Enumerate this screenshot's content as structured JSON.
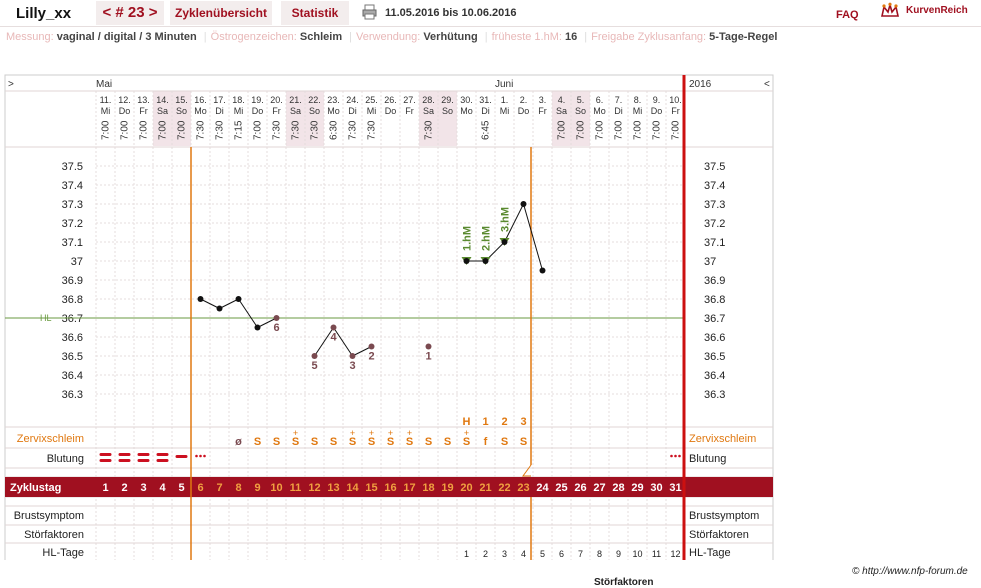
{
  "header": {
    "user": "Lilly_xx",
    "cycle_nav": "< # 23 >",
    "tab_overview": "Zyklenübersicht",
    "tab_stats": "Statistik",
    "date_range": "11.05.2016 bis 10.06.2016",
    "faq": "FAQ",
    "brand": "KurvenReich"
  },
  "meta": [
    {
      "key": "Messung:",
      "value": "vaginal / digital / 3 Minuten"
    },
    {
      "key": "Östrogenzeichen:",
      "value": "Schleim"
    },
    {
      "key": "Verwendung:",
      "value": "Verhütung"
    },
    {
      "key": "früheste 1.hM:",
      "value": "16"
    },
    {
      "key": "Freigabe Zyklusanfang:",
      "value": "5-Tage-Regel"
    }
  ],
  "chart": {
    "nav_prev": ">",
    "nav_next": "<",
    "month_may": "Mai",
    "month_june": "Juni",
    "year": "2016",
    "hl_label": "HL",
    "hl_value": 36.7,
    "days": [
      {
        "date": "11.",
        "wd": "Mi",
        "time": "7:00"
      },
      {
        "date": "12.",
        "wd": "Do",
        "time": "7:00"
      },
      {
        "date": "13.",
        "wd": "Fr",
        "time": "7:00"
      },
      {
        "date": "14.",
        "wd": "Sa",
        "time": "7:00",
        "weekend": true
      },
      {
        "date": "15.",
        "wd": "So",
        "time": "7:00",
        "weekend": true
      },
      {
        "date": "16.",
        "wd": "Mo",
        "time": "7:30"
      },
      {
        "date": "17.",
        "wd": "Di",
        "time": "7:30"
      },
      {
        "date": "18.",
        "wd": "Mi",
        "time": "7:15"
      },
      {
        "date": "19.",
        "wd": "Do",
        "time": "7:00"
      },
      {
        "date": "20.",
        "wd": "Fr",
        "time": "7:30"
      },
      {
        "date": "21.",
        "wd": "Sa",
        "time": "7:30",
        "weekend": true
      },
      {
        "date": "22.",
        "wd": "So",
        "time": "7:30",
        "weekend": true
      },
      {
        "date": "23.",
        "wd": "Mo",
        "time": "6:30"
      },
      {
        "date": "24.",
        "wd": "Di",
        "time": "7:30"
      },
      {
        "date": "25.",
        "wd": "Mi",
        "time": "7:30"
      },
      {
        "date": "26.",
        "wd": "Do",
        "time": ""
      },
      {
        "date": "27.",
        "wd": "Fr",
        "time": ""
      },
      {
        "date": "28.",
        "wd": "Sa",
        "time": "7:30",
        "weekend": true
      },
      {
        "date": "29.",
        "wd": "So",
        "time": "",
        "weekend": true
      },
      {
        "date": "30.",
        "wd": "Mo",
        "time": ""
      },
      {
        "date": "31.",
        "wd": "Di",
        "time": "6:45"
      },
      {
        "date": "1.",
        "wd": "Mi",
        "time": ""
      },
      {
        "date": "2.",
        "wd": "Do",
        "time": ""
      },
      {
        "date": "3.",
        "wd": "Fr",
        "time": ""
      },
      {
        "date": "4.",
        "wd": "Sa",
        "time": "7:00",
        "weekend": true
      },
      {
        "date": "5.",
        "wd": "So",
        "time": "7:00",
        "weekend": true
      },
      {
        "date": "6.",
        "wd": "Mo",
        "time": "7:00"
      },
      {
        "date": "7.",
        "wd": "Di",
        "time": "7:00"
      },
      {
        "date": "8.",
        "wd": "Mi",
        "time": "7:00"
      },
      {
        "date": "9.",
        "wd": "Do",
        "time": "7:00"
      },
      {
        "date": "10.",
        "wd": "Fr",
        "time": "7:00"
      }
    ],
    "y_ticks": [
      "37.5",
      "37.4",
      "37.3",
      "37.2",
      "37.1",
      "37",
      "36.9",
      "36.8",
      "36.7",
      "36.6",
      "36.5",
      "36.4",
      "36.3"
    ],
    "temps": [
      null,
      null,
      null,
      null,
      null,
      36.8,
      36.75,
      36.8,
      36.65,
      36.7,
      null,
      36.5,
      36.65,
      36.5,
      36.55,
      null,
      null,
      36.55,
      null,
      37.0,
      37.0,
      37.1,
      37.3,
      36.95,
      null,
      null,
      null,
      null,
      null,
      null,
      null
    ],
    "excluded": [
      9,
      11,
      12,
      13,
      14,
      17
    ],
    "excluded_labels": {
      "9": "6",
      "11": "5",
      "12": "4",
      "13": "3",
      "14": "2",
      "17": "1"
    },
    "markers": [
      {
        "day": 19,
        "label": "1.hM"
      },
      {
        "day": 20,
        "label": "2.hM"
      },
      {
        "day": 21,
        "label": "3.hM"
      }
    ],
    "counts_above": {
      "19": "H",
      "20": "1",
      "21": "2",
      "22": "3"
    },
    "cervix_label": "Zervixschleim",
    "cervix": [
      "",
      "",
      "",
      "",
      "",
      "",
      "",
      "ø",
      "S",
      "S",
      "S+",
      "S",
      "S",
      "S+",
      "S+",
      "S+",
      "S+",
      "S",
      "S",
      "S+",
      "f",
      "S",
      "S",
      "",
      "",
      "",
      "",
      "",
      "",
      "",
      ""
    ],
    "bleeding_label": "Blutung",
    "bleeding": [
      "heavy",
      "heavy",
      "heavy",
      "heavy",
      "medium",
      "spot",
      "",
      "",
      "",
      "",
      "",
      "",
      "",
      "",
      "",
      "",
      "",
      "",
      "",
      "",
      "",
      "",
      "",
      "",
      "",
      "",
      "",
      "",
      "",
      "",
      "spot"
    ],
    "cycleday_label": "Zyklustag",
    "cycle_days": [
      "1",
      "2",
      "3",
      "4",
      "5",
      "6",
      "7",
      "8",
      "9",
      "10",
      "11",
      "12",
      "13",
      "14",
      "15",
      "16",
      "17",
      "18",
      "19",
      "20",
      "21",
      "22",
      "23",
      "24",
      "25",
      "26",
      "27",
      "28",
      "29",
      "30",
      "31"
    ],
    "breast_label": "Brustsymptom",
    "disturb_label": "Störfaktoren",
    "hl_days_label": "HL-Tage",
    "hl_days": [
      "",
      "",
      "",
      "",
      "",
      "",
      "",
      "",
      "",
      "",
      "",
      "",
      "",
      "",
      "",
      "",
      "",
      "",
      "",
      "1",
      "2",
      "3",
      "4",
      "5",
      "6",
      "7",
      "8",
      "9",
      "10",
      "11",
      "12"
    ]
  },
  "footer": {
    "copyright": "© http://www.nfp-forum.de",
    "cut_text": "Störfaktoren"
  },
  "colors": {
    "accent": "#a01020",
    "orange": "#e07810",
    "green": "#5a8a30",
    "excluded": "#7a4a50"
  }
}
